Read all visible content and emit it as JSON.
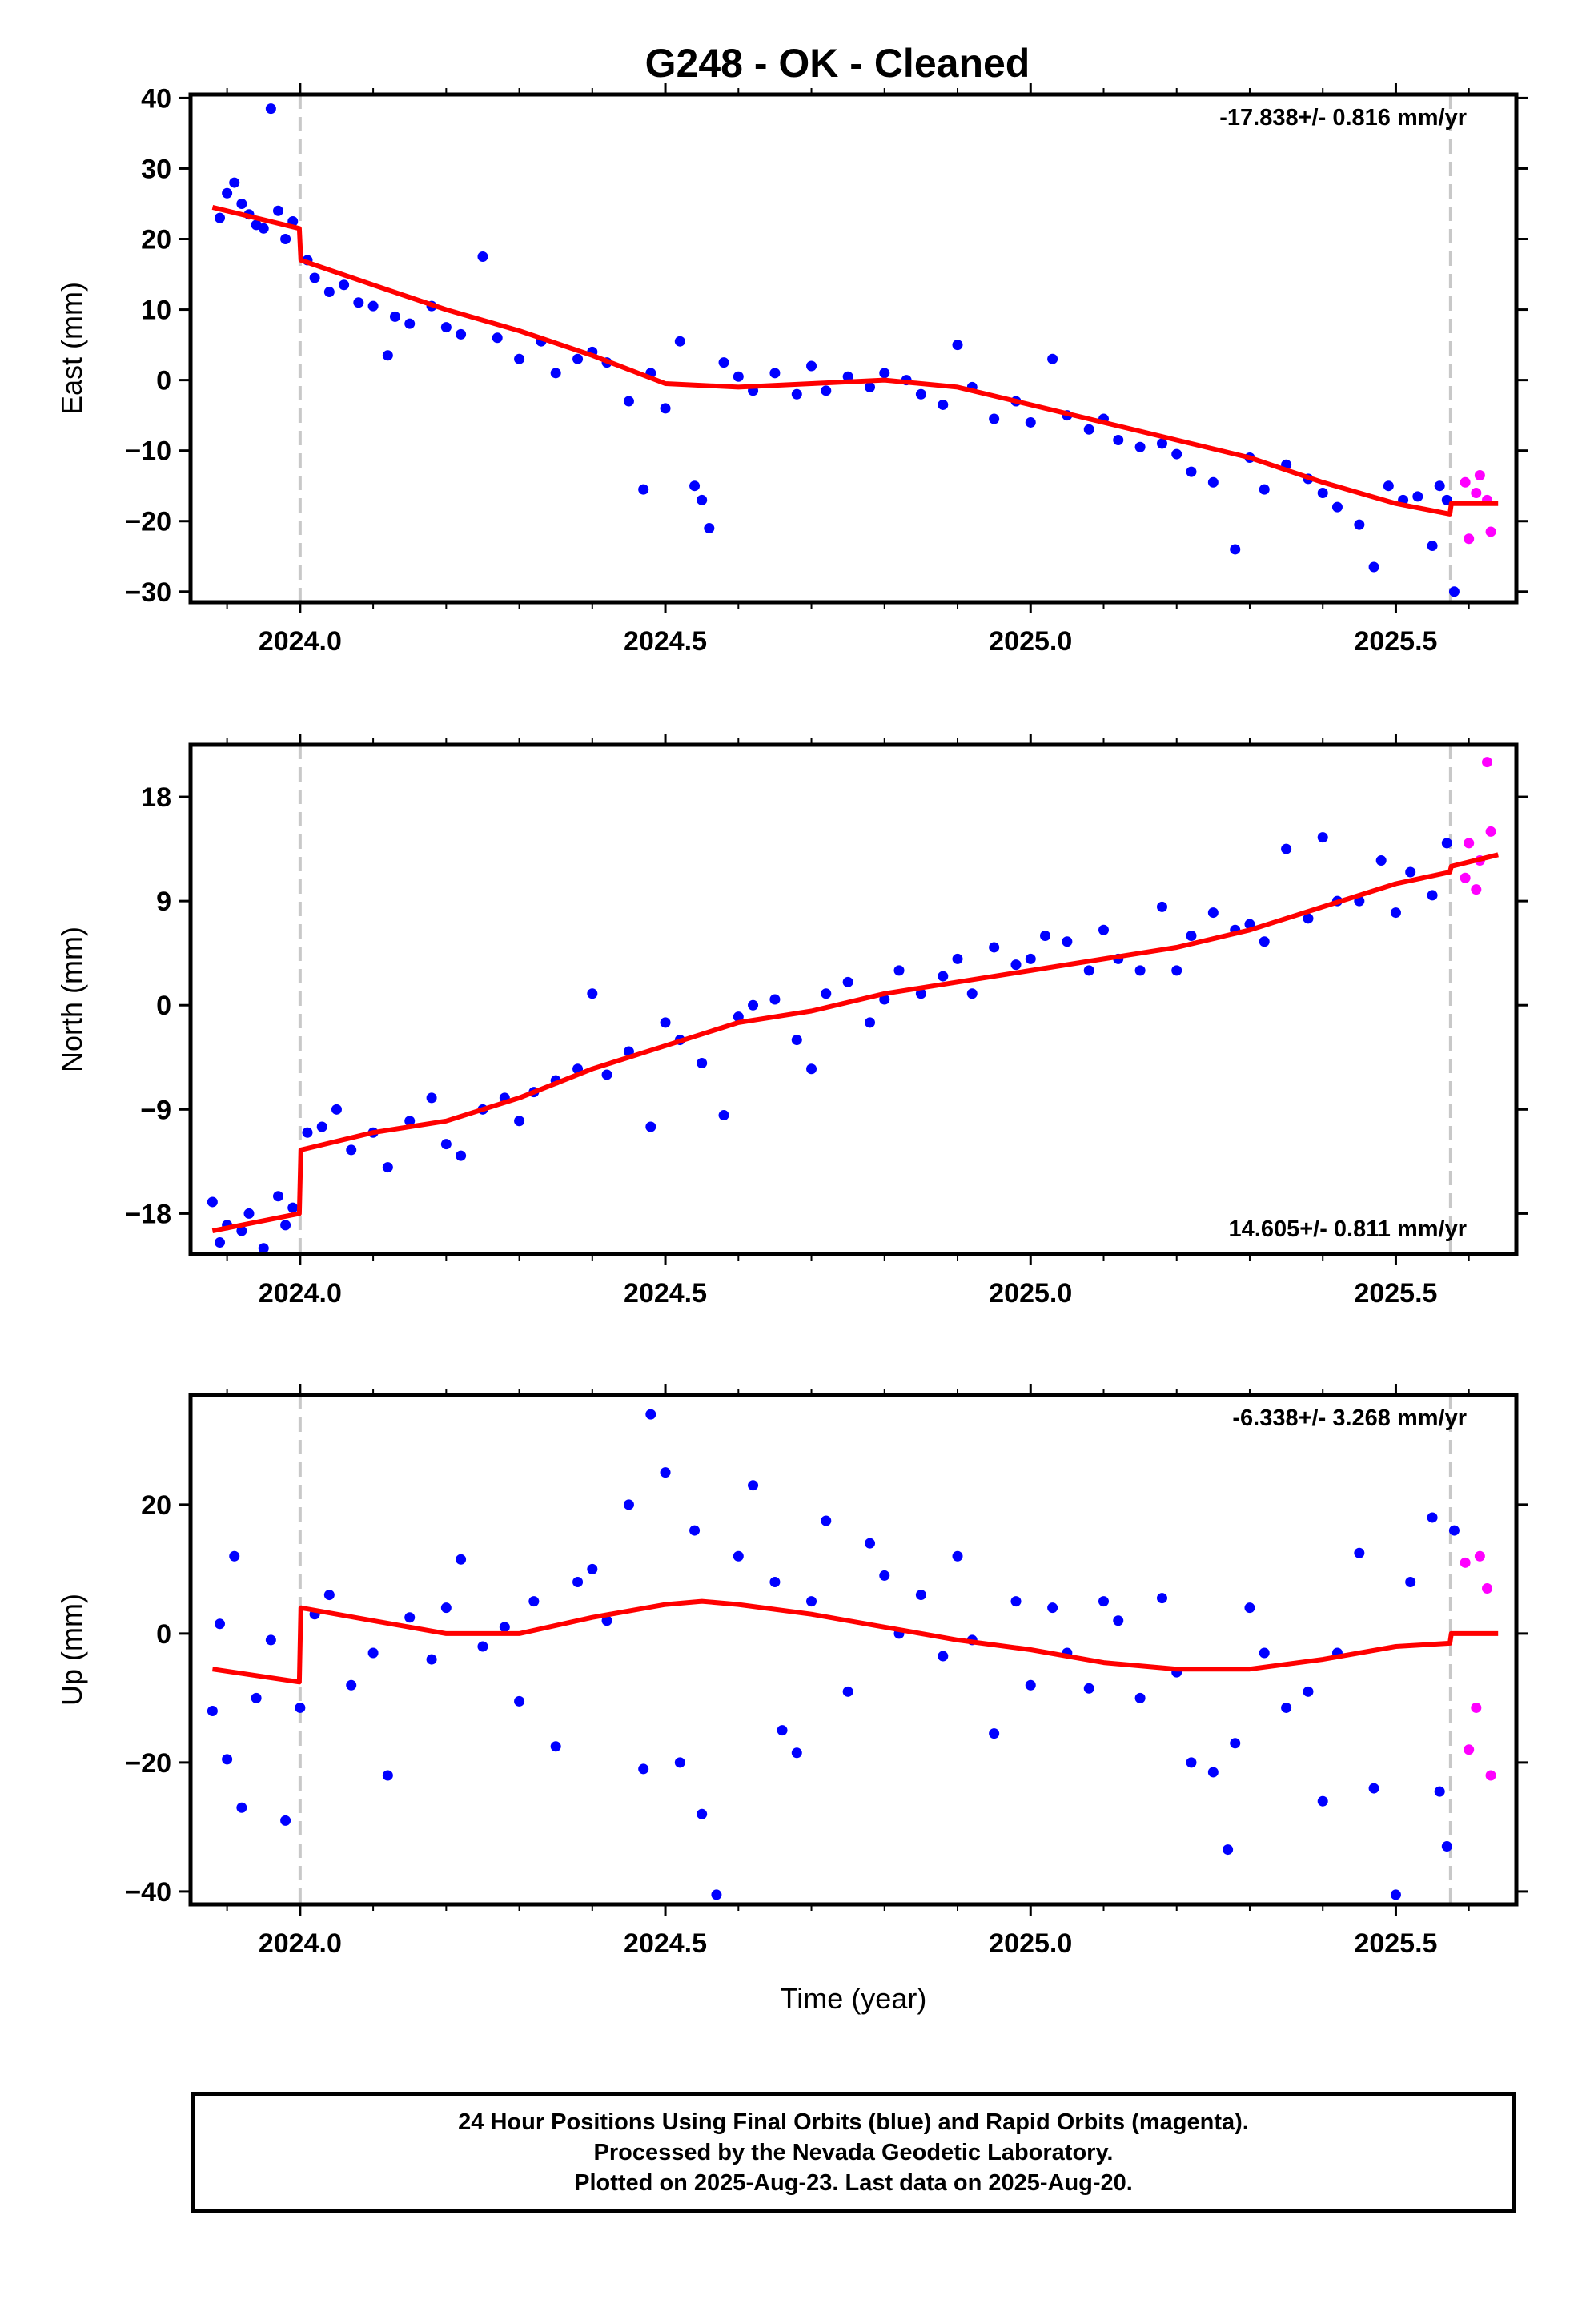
{
  "title": "G248  - OK - Cleaned",
  "colors": {
    "final": "#0000ff",
    "rapid": "#ff00ff",
    "model": "#ff0000",
    "event_line": "#c8c8c8"
  },
  "footer": {
    "line1": "24 Hour Positions Using Final Orbits (blue) and Rapid Orbits (magenta).",
    "line2": "Processed by the Nevada Geodetic Laboratory.",
    "line3": "Plotted on 2025-Aug-23. Last data on 2025-Aug-20."
  },
  "chart_data": [
    {
      "type": "scatter",
      "component": "east",
      "ylabel": "East (mm)",
      "xlabel": "",
      "rate_label": "-17.838+/- 0.816 mm/yr",
      "rate_position": "top-right",
      "xlim": [
        2023.85,
        2025.665
      ],
      "ylim": [
        -31.5,
        40.5
      ],
      "xticks": [
        2024.0,
        2024.5,
        2025.0,
        2025.5
      ],
      "xtick_labels": [
        "2024.0",
        "2024.5",
        "2025.0",
        "2025.5"
      ],
      "yticks": [
        -30,
        -20,
        -10,
        0,
        10,
        20,
        30,
        40
      ],
      "ytick_labels": [
        "−30",
        "−20",
        "−10",
        "0",
        "10",
        "20",
        "30",
        "40"
      ],
      "event_lines": [
        2024.0,
        2025.575
      ],
      "model": {
        "x": [
          2023.88,
          2023.999,
          2024.001,
          2024.1,
          2024.2,
          2024.3,
          2024.4,
          2024.5,
          2024.6,
          2024.7,
          2024.8,
          2024.9,
          2025.0,
          2025.1,
          2025.2,
          2025.3,
          2025.4,
          2025.5,
          2025.574,
          2025.576,
          2025.64
        ],
        "y": [
          24.5,
          21.5,
          17.0,
          13.5,
          10.0,
          7.0,
          3.5,
          -0.5,
          -1.0,
          -0.5,
          0.0,
          -1.0,
          -3.5,
          -6.0,
          -8.5,
          -11.0,
          -14.5,
          -17.5,
          -19.0,
          -17.5,
          -17.5
        ]
      },
      "final_points": {
        "x": [
          2023.89,
          2023.9,
          2023.91,
          2023.92,
          2023.93,
          2023.94,
          2023.95,
          2023.96,
          2023.97,
          2023.98,
          2023.99,
          2024.01,
          2024.02,
          2024.04,
          2024.06,
          2024.08,
          2024.1,
          2024.12,
          2024.13,
          2024.15,
          2024.18,
          2024.2,
          2024.22,
          2024.25,
          2024.27,
          2024.3,
          2024.33,
          2024.35,
          2024.38,
          2024.4,
          2024.42,
          2024.45,
          2024.47,
          2024.48,
          2024.5,
          2024.52,
          2024.54,
          2024.55,
          2024.56,
          2024.58,
          2024.6,
          2024.62,
          2024.65,
          2024.68,
          2024.7,
          2024.72,
          2024.75,
          2024.78,
          2024.8,
          2024.83,
          2024.85,
          2024.88,
          2024.9,
          2024.92,
          2024.95,
          2024.98,
          2025.0,
          2025.03,
          2025.05,
          2025.08,
          2025.1,
          2025.12,
          2025.15,
          2025.18,
          2025.2,
          2025.22,
          2025.25,
          2025.28,
          2025.3,
          2025.32,
          2025.35,
          2025.38,
          2025.4,
          2025.42,
          2025.45,
          2025.47,
          2025.49,
          2025.51,
          2025.53,
          2025.55,
          2025.56,
          2025.57,
          2025.58
        ],
        "y": [
          23.0,
          26.5,
          28.0,
          25.0,
          23.5,
          22.0,
          21.5,
          38.5,
          24.0,
          20.0,
          22.5,
          17.0,
          14.5,
          12.5,
          13.5,
          11.0,
          10.5,
          3.5,
          9.0,
          8.0,
          10.5,
          7.5,
          6.5,
          17.5,
          6.0,
          3.0,
          5.5,
          1.0,
          3.0,
          4.0,
          2.5,
          -3.0,
          -15.5,
          1.0,
          -4.0,
          5.5,
          -15.0,
          -17.0,
          -21.0,
          2.5,
          0.5,
          -1.5,
          1.0,
          -2.0,
          2.0,
          -1.5,
          0.5,
          -1.0,
          1.0,
          0.0,
          -2.0,
          -3.5,
          5.0,
          -1.0,
          -5.5,
          -3.0,
          -6.0,
          3.0,
          -5.0,
          -7.0,
          -5.5,
          -8.5,
          -9.5,
          -9.0,
          -10.5,
          -13.0,
          -14.5,
          -24.0,
          -11.0,
          -15.5,
          -12.0,
          -14.0,
          -16.0,
          -18.0,
          -20.5,
          -26.5,
          -15.0,
          -17.0,
          -16.5,
          -23.5,
          -15.0,
          -17.0,
          -30.0
        ]
      },
      "rapid_points": {
        "x": [
          2025.595,
          2025.6,
          2025.61,
          2025.615,
          2025.625,
          2025.63
        ],
        "y": [
          -14.5,
          -22.5,
          -16.0,
          -13.5,
          -17.0,
          -21.5
        ]
      }
    },
    {
      "type": "scatter",
      "component": "north",
      "ylabel": "North (mm)",
      "xlabel": "",
      "rate_label": "14.605+/- 0.811 mm/yr",
      "rate_position": "bottom-right",
      "xlim": [
        2023.85,
        2025.665
      ],
      "ylim": [
        -21.5,
        22.5
      ],
      "xticks": [
        2024.0,
        2024.5,
        2025.0,
        2025.5
      ],
      "xtick_labels": [
        "2024.0",
        "2024.5",
        "2025.0",
        "2025.5"
      ],
      "yticks": [
        -18,
        -9,
        0,
        9,
        18
      ],
      "ytick_labels": [
        "−18",
        "−9",
        "0",
        "9",
        "18"
      ],
      "event_lines": [
        2024.0,
        2025.575
      ],
      "model": {
        "x": [
          2023.88,
          2023.999,
          2024.001,
          2024.1,
          2024.2,
          2024.3,
          2024.4,
          2024.5,
          2024.6,
          2024.7,
          2024.8,
          2024.9,
          2025.0,
          2025.1,
          2025.2,
          2025.3,
          2025.4,
          2025.5,
          2025.574,
          2025.576,
          2025.64
        ],
        "y": [
          -19.5,
          -18.0,
          -12.5,
          -11.0,
          -10.0,
          -8.0,
          -5.5,
          -3.5,
          -1.5,
          -0.5,
          1.0,
          2.0,
          3.0,
          4.0,
          5.0,
          6.5,
          8.5,
          10.5,
          11.5,
          12.0,
          13.0
        ]
      },
      "final_points": {
        "x": [
          2023.88,
          2023.89,
          2023.9,
          2023.92,
          2023.93,
          2023.95,
          2023.97,
          2023.98,
          2023.99,
          2024.01,
          2024.03,
          2024.05,
          2024.07,
          2024.1,
          2024.12,
          2024.15,
          2024.18,
          2024.2,
          2024.22,
          2024.25,
          2024.28,
          2024.3,
          2024.32,
          2024.35,
          2024.38,
          2024.4,
          2024.42,
          2024.45,
          2024.48,
          2024.5,
          2024.52,
          2024.55,
          2024.58,
          2024.6,
          2024.62,
          2024.65,
          2024.68,
          2024.7,
          2024.72,
          2024.75,
          2024.78,
          2024.8,
          2024.82,
          2024.85,
          2024.88,
          2024.9,
          2024.92,
          2024.95,
          2024.98,
          2025.0,
          2025.02,
          2025.05,
          2025.08,
          2025.1,
          2025.12,
          2025.15,
          2025.18,
          2025.2,
          2025.22,
          2025.25,
          2025.28,
          2025.3,
          2025.32,
          2025.35,
          2025.38,
          2025.4,
          2025.42,
          2025.45,
          2025.48,
          2025.5,
          2025.52,
          2025.55,
          2025.57
        ],
        "y": [
          -17.0,
          -20.5,
          -19.0,
          -19.5,
          -18.0,
          -21.0,
          -16.5,
          -19.0,
          -17.5,
          -11.0,
          -10.5,
          -9.0,
          -12.5,
          -11.0,
          -14.0,
          -10.0,
          -8.0,
          -12.0,
          -13.0,
          -9.0,
          -8.0,
          -10.0,
          -7.5,
          -6.5,
          -5.5,
          1.0,
          -6.0,
          -4.0,
          -10.5,
          -1.5,
          -3.0,
          -5.0,
          -9.5,
          -1.0,
          0.0,
          0.5,
          -3.0,
          -5.5,
          1.0,
          2.0,
          -1.5,
          0.5,
          3.0,
          1.0,
          2.5,
          4.0,
          1.0,
          5.0,
          3.5,
          4.0,
          6.0,
          5.5,
          3.0,
          6.5,
          4.0,
          3.0,
          8.5,
          3.0,
          6.0,
          8.0,
          6.5,
          7.0,
          5.5,
          13.5,
          7.5,
          14.5,
          9.0,
          9.0,
          12.5,
          8.0,
          11.5,
          9.5,
          14.0
        ]
      },
      "rapid_points": {
        "x": [
          2025.595,
          2025.6,
          2025.61,
          2025.615,
          2025.625,
          2025.63
        ],
        "y": [
          11.0,
          14.0,
          10.0,
          12.5,
          21.0,
          15.0
        ]
      }
    },
    {
      "type": "scatter",
      "component": "up",
      "ylabel": "Up (mm)",
      "xlabel": "Time (year)",
      "rate_label": "-6.338+/- 3.268 mm/yr",
      "rate_position": "top-right",
      "xlim": [
        2023.85,
        2025.665
      ],
      "ylim": [
        -42,
        37
      ],
      "xticks": [
        2024.0,
        2024.5,
        2025.0,
        2025.5
      ],
      "xtick_labels": [
        "2024.0",
        "2024.5",
        "2025.0",
        "2025.5"
      ],
      "yticks": [
        -40,
        -20,
        0,
        20
      ],
      "ytick_labels": [
        "−40",
        "−20",
        "0",
        "20"
      ],
      "event_lines": [
        2024.0,
        2025.575
      ],
      "model": {
        "x": [
          2023.88,
          2023.999,
          2024.001,
          2024.1,
          2024.2,
          2024.3,
          2024.4,
          2024.5,
          2024.55,
          2024.6,
          2024.7,
          2024.8,
          2024.9,
          2025.0,
          2025.1,
          2025.2,
          2025.3,
          2025.4,
          2025.5,
          2025.574,
          2025.576,
          2025.64
        ],
        "y": [
          -5.5,
          -7.5,
          4.0,
          2.0,
          0.0,
          0.0,
          2.5,
          4.5,
          5.0,
          4.5,
          3.0,
          1.0,
          -1.0,
          -2.5,
          -4.5,
          -5.5,
          -5.5,
          -4.0,
          -2.0,
          -1.5,
          0.0,
          0.0
        ]
      },
      "final_points": {
        "x": [
          2023.88,
          2023.89,
          2023.9,
          2023.91,
          2023.92,
          2023.94,
          2023.96,
          2023.98,
          2024.0,
          2024.02,
          2024.04,
          2024.07,
          2024.1,
          2024.12,
          2024.15,
          2024.18,
          2024.2,
          2024.22,
          2024.25,
          2024.28,
          2024.3,
          2024.32,
          2024.35,
          2024.38,
          2024.4,
          2024.42,
          2024.45,
          2024.47,
          2024.48,
          2024.5,
          2024.52,
          2024.54,
          2024.55,
          2024.57,
          2024.6,
          2024.62,
          2024.65,
          2024.66,
          2024.68,
          2024.7,
          2024.72,
          2024.75,
          2024.78,
          2024.8,
          2024.82,
          2024.85,
          2024.88,
          2024.9,
          2024.92,
          2024.95,
          2024.98,
          2025.0,
          2025.03,
          2025.05,
          2025.08,
          2025.1,
          2025.12,
          2025.15,
          2025.18,
          2025.2,
          2025.22,
          2025.25,
          2025.27,
          2025.28,
          2025.3,
          2025.32,
          2025.35,
          2025.38,
          2025.4,
          2025.42,
          2025.45,
          2025.47,
          2025.5,
          2025.52,
          2025.55,
          2025.56,
          2025.57,
          2025.58
        ],
        "y": [
          -12.0,
          1.5,
          -19.5,
          12.0,
          -27.0,
          -10.0,
          -1.0,
          -29.0,
          -11.5,
          3.0,
          6.0,
          -8.0,
          -3.0,
          -22.0,
          2.5,
          -4.0,
          4.0,
          11.5,
          -2.0,
          1.0,
          -10.5,
          5.0,
          -17.5,
          8.0,
          10.0,
          2.0,
          20.0,
          -21.0,
          34.0,
          25.0,
          -20.0,
          16.0,
          -28.0,
          -40.5,
          12.0,
          23.0,
          8.0,
          -15.0,
          -18.5,
          5.0,
          17.5,
          -9.0,
          14.0,
          9.0,
          0.0,
          6.0,
          -3.5,
          12.0,
          -1.0,
          -15.5,
          5.0,
          -8.0,
          4.0,
          -3.0,
          -8.5,
          5.0,
          2.0,
          -10.0,
          5.5,
          -6.0,
          -20.0,
          -21.5,
          -33.5,
          -17.0,
          4.0,
          -3.0,
          -11.5,
          -9.0,
          -26.0,
          -3.0,
          12.5,
          -24.0,
          -40.5,
          8.0,
          18.0,
          -24.5,
          -33.0,
          16.0
        ]
      },
      "rapid_points": {
        "x": [
          2025.595,
          2025.6,
          2025.61,
          2025.615,
          2025.625,
          2025.63
        ],
        "y": [
          11.0,
          -18.0,
          -11.5,
          12.0,
          7.0,
          -22.0
        ]
      }
    }
  ]
}
